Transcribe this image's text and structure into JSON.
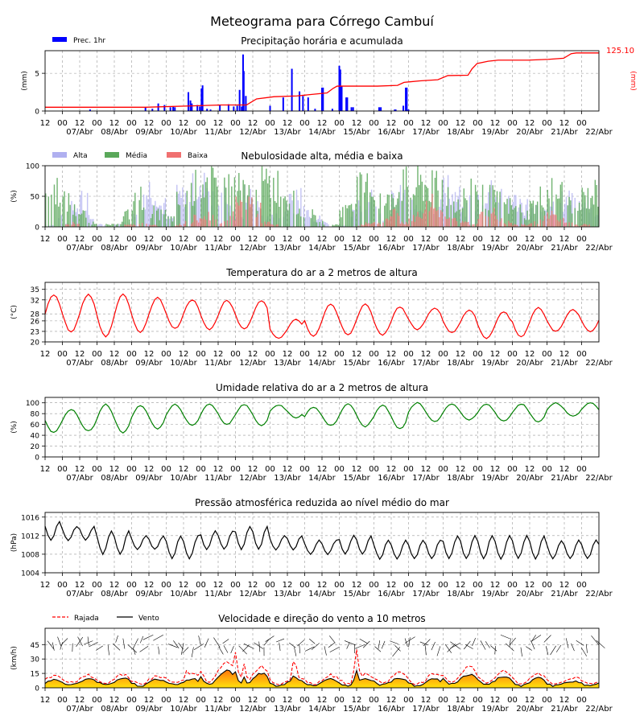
{
  "title": "Meteograma para Córrego Cambuí",
  "x_axis": {
    "hour_labels": [
      "12",
      "00",
      "12",
      "00",
      "12",
      "00",
      "12",
      "00",
      "12",
      "00",
      "12",
      "00",
      "12",
      "00",
      "12",
      "00",
      "12",
      "00",
      "12",
      "00",
      "12",
      "00",
      "12",
      "00",
      "12",
      "00",
      "12",
      "00",
      "12",
      "00",
      "12",
      "00"
    ],
    "day_labels": [
      "07/Abr",
      "08/Abr",
      "09/Abr",
      "10/Abr",
      "11/Abr",
      "12/Abr",
      "13/Abr",
      "14/Abr",
      "15/Abr",
      "16/Abr",
      "17/Abr",
      "18/Abr",
      "19/Abr",
      "20/Abr",
      "21/Abr",
      "22/Abr"
    ]
  },
  "chart_data": [
    {
      "type": "bar",
      "title": "Precipitação horária e acumulada",
      "ylabel": "(mm)",
      "ylabel_right": "(mm)",
      "ylim": [
        0,
        8
      ],
      "yticks": [
        "0",
        "5"
      ],
      "legend": [
        "Prec. 1hr"
      ],
      "legend_placement": "top-left",
      "accum_label": "125.10",
      "accum_max": 125.1,
      "colors": {
        "bars": "#0000ff",
        "accum": "#ff0000"
      },
      "x_start": "06/Abr 12h",
      "x_end": "22/Abr 12h",
      "bars": [
        [
          1.3,
          0.2
        ],
        [
          2.9,
          0.5
        ],
        [
          3.1,
          0.3
        ],
        [
          3.27,
          1.0
        ],
        [
          3.45,
          0.8
        ],
        [
          3.62,
          0.5
        ],
        [
          3.7,
          0.6
        ],
        [
          3.75,
          0.5
        ],
        [
          4.14,
          2.5
        ],
        [
          4.2,
          1.4
        ],
        [
          4.24,
          1.0
        ],
        [
          4.4,
          0.8
        ],
        [
          4.47,
          0.6
        ],
        [
          4.52,
          3.0
        ],
        [
          4.55,
          3.4
        ],
        [
          4.68,
          0.3
        ],
        [
          4.78,
          0.2
        ],
        [
          5.05,
          0.8
        ],
        [
          5.3,
          0.9
        ],
        [
          5.45,
          0.6
        ],
        [
          5.55,
          0.7
        ],
        [
          5.62,
          2.8
        ],
        [
          5.68,
          0.6
        ],
        [
          5.72,
          7.5
        ],
        [
          5.74,
          5.3
        ],
        [
          5.8,
          2.0
        ],
        [
          6.5,
          0.7
        ],
        [
          6.88,
          1.8
        ],
        [
          7.13,
          5.6
        ],
        [
          7.35,
          2.6
        ],
        [
          7.45,
          2.0
        ],
        [
          7.6,
          1.8
        ],
        [
          7.8,
          0.3
        ],
        [
          8.0,
          3.1
        ],
        [
          8.03,
          3.1
        ],
        [
          8.3,
          0.3
        ],
        [
          8.5,
          6.0
        ],
        [
          8.53,
          5.5
        ],
        [
          8.57,
          3.3
        ],
        [
          8.7,
          1.8
        ],
        [
          8.73,
          1.8
        ],
        [
          8.85,
          0.5
        ],
        [
          8.9,
          0.5
        ],
        [
          9.65,
          0.5
        ],
        [
          9.7,
          0.5
        ],
        [
          10.1,
          0.2
        ],
        [
          10.13,
          0.2
        ],
        [
          10.35,
          0.7
        ],
        [
          10.42,
          3.1
        ],
        [
          10.45,
          3.1
        ],
        [
          10.5,
          0.2
        ]
      ],
      "accum": [
        [
          0,
          0.5
        ],
        [
          2.0,
          0.5
        ],
        [
          3.5,
          0.8
        ],
        [
          4.0,
          0.8
        ],
        [
          4.2,
          1.6
        ],
        [
          4.55,
          1.9
        ],
        [
          5.0,
          2.0
        ],
        [
          5.6,
          2.4
        ],
        [
          5.72,
          3.0
        ],
        [
          5.8,
          3.3
        ],
        [
          6.4,
          3.3
        ],
        [
          6.6,
          3.3
        ],
        [
          7.0,
          3.4
        ],
        [
          7.13,
          3.8
        ],
        [
          7.45,
          4.0
        ],
        [
          7.8,
          4.15
        ],
        [
          8.0,
          4.7
        ],
        [
          8.4,
          4.75
        ],
        [
          8.48,
          5.6
        ],
        [
          8.58,
          6.3
        ],
        [
          8.8,
          6.6
        ],
        [
          9.0,
          6.75
        ],
        [
          9.6,
          6.75
        ],
        [
          10.0,
          6.85
        ],
        [
          10.3,
          7.0
        ],
        [
          10.45,
          7.6
        ],
        [
          10.55,
          7.7
        ],
        [
          11.0,
          7.7
        ]
      ]
    },
    {
      "type": "bar",
      "title": "Nebulosidade alta, média e baixa",
      "ylabel": "(%)",
      "ylim": [
        0,
        100
      ],
      "yticks": [
        "0",
        "50",
        "100"
      ],
      "legend": [
        "Alta",
        "Média",
        "Baixa"
      ],
      "legend_placement": "top-left",
      "colors": [
        "#b0b0f0",
        "#5aa85a",
        "#f07070"
      ],
      "series": [
        {
          "name": "Alta",
          "values": [
            5,
            20,
            8,
            60,
            70,
            20,
            5,
            0,
            5,
            10,
            40,
            80,
            90,
            50,
            20,
            70,
            85,
            90,
            95,
            90,
            80,
            40,
            30,
            70,
            50,
            20,
            30,
            40,
            60,
            80,
            40,
            20,
            10,
            0,
            5,
            30,
            60,
            80,
            40,
            20,
            60,
            70,
            50,
            30,
            40,
            80,
            90,
            70,
            40,
            60,
            80,
            90,
            80,
            70,
            60,
            50,
            40,
            30,
            50,
            60,
            70,
            80,
            60,
            40
          ]
        },
        {
          "name": "Média",
          "values": [
            80,
            90,
            60,
            40,
            30,
            10,
            0,
            5,
            10,
            30,
            60,
            70,
            40,
            30,
            20,
            60,
            80,
            95,
            100,
            100,
            95,
            100,
            90,
            80,
            70,
            100,
            100,
            90,
            60,
            40,
            30,
            20,
            10,
            5,
            40,
            60,
            90,
            95,
            70,
            60,
            80,
            100,
            90,
            100,
            95,
            100,
            80,
            60,
            70,
            90,
            80,
            70,
            60,
            50,
            40,
            30,
            50,
            70,
            90,
            80,
            60,
            50,
            70,
            80
          ]
        },
        {
          "name": "Baixa",
          "values": [
            0,
            0,
            5,
            10,
            0,
            0,
            0,
            0,
            0,
            5,
            5,
            10,
            5,
            0,
            0,
            5,
            10,
            20,
            30,
            20,
            10,
            30,
            50,
            60,
            40,
            10,
            5,
            0,
            0,
            0,
            0,
            0,
            0,
            0,
            0,
            0,
            5,
            10,
            10,
            20,
            30,
            10,
            20,
            30,
            60,
            40,
            30,
            20,
            10,
            5,
            30,
            40,
            20,
            10,
            5,
            5,
            10,
            20,
            30,
            20,
            10,
            5,
            5,
            0
          ]
        }
      ]
    },
    {
      "type": "line",
      "title": "Temperatura do ar a 2 metros de altura",
      "ylabel": "(°C)",
      "ylim": [
        20,
        37
      ],
      "yticks": [
        "20",
        "23",
        "26",
        "28",
        "32",
        "35"
      ],
      "color": "#ff0000",
      "daily": [
        [
          22.5,
          33.5
        ],
        [
          22.8,
          33.5
        ],
        [
          21.5,
          33.6
        ],
        [
          22.8,
          32.8
        ],
        [
          23.8,
          32.1
        ],
        [
          23.5,
          31.8
        ],
        [
          23.6,
          31.8
        ],
        [
          21.0,
          26.4
        ],
        [
          21.5,
          30.8
        ],
        [
          22.0,
          30.8
        ],
        [
          22.0,
          30.0
        ],
        [
          23.5,
          29.6
        ],
        [
          22.6,
          29.0
        ],
        [
          21.0,
          28.6
        ],
        [
          21.5,
          29.8
        ],
        [
          23.0,
          29.2
        ]
      ]
    },
    {
      "type": "line",
      "title": "Umidade relativa do ar a 2 metros de altura",
      "ylabel": "(%)",
      "ylim": [
        0,
        110
      ],
      "yticks": [
        "0",
        "20",
        "40",
        "60",
        "80",
        "100"
      ],
      "color": "#008000",
      "daily": [
        [
          45,
          90
        ],
        [
          48,
          88
        ],
        [
          45,
          97
        ],
        [
          52,
          95
        ],
        [
          58,
          97
        ],
        [
          60,
          98
        ],
        [
          58,
          97
        ],
        [
          72,
          96
        ],
        [
          58,
          92
        ],
        [
          56,
          98
        ],
        [
          52,
          96
        ],
        [
          65,
          100
        ],
        [
          68,
          97
        ],
        [
          66,
          98
        ],
        [
          65,
          98
        ],
        [
          75,
          100
        ]
      ]
    },
    {
      "type": "line",
      "title": "Pressão atmosférica reduzida ao nível médio do mar",
      "ylabel": "(hPa)",
      "ylim": [
        1004,
        1017
      ],
      "yticks": [
        "1004",
        "1008",
        "1012",
        "1016"
      ],
      "color": "#000000",
      "daily": [
        [
          1011,
          1015
        ],
        [
          1011,
          1014
        ],
        [
          1008,
          1013
        ],
        [
          1009,
          1012
        ],
        [
          1007,
          1012
        ],
        [
          1009,
          1013
        ],
        [
          1009,
          1014
        ],
        [
          1009,
          1012
        ],
        [
          1008,
          1011
        ],
        [
          1008,
          1012
        ],
        [
          1007,
          1011
        ],
        [
          1007,
          1011
        ],
        [
          1007,
          1012
        ],
        [
          1007,
          1012
        ],
        [
          1007,
          1012
        ],
        [
          1007,
          1011
        ]
      ]
    },
    {
      "type": "area",
      "title": "Velocidade e direção do vento a 10 metros",
      "ylabel": "(km/h)",
      "ylim": [
        0,
        62
      ],
      "yticks": [
        "0",
        "15",
        "30",
        "45"
      ],
      "legend": [
        "Rajada",
        "Vento"
      ],
      "legend_placement": "top-left",
      "colors": {
        "gust": "#ff0000",
        "wind": "#000000",
        "fill_low": "#ffe000",
        "fill_high": "#ff7000"
      },
      "wind_daily": [
        [
          2,
          8
        ],
        [
          3,
          9
        ],
        [
          3,
          10
        ],
        [
          2,
          9
        ],
        [
          3,
          9
        ],
        [
          4,
          18
        ],
        [
          3,
          15
        ],
        [
          2,
          8
        ],
        [
          2,
          9
        ],
        [
          2,
          9
        ],
        [
          3,
          10
        ],
        [
          2,
          9
        ],
        [
          4,
          14
        ],
        [
          3,
          12
        ],
        [
          2,
          10
        ],
        [
          2,
          7
        ]
      ],
      "gust_daily": [
        [
          4,
          12
        ],
        [
          5,
          13
        ],
        [
          5,
          14
        ],
        [
          4,
          12
        ],
        [
          5,
          14
        ],
        [
          6,
          28
        ],
        [
          5,
          22
        ],
        [
          4,
          12
        ],
        [
          4,
          13
        ],
        [
          4,
          14
        ],
        [
          5,
          16
        ],
        [
          4,
          14
        ],
        [
          6,
          22
        ],
        [
          5,
          18
        ],
        [
          4,
          15
        ],
        [
          4,
          11
        ]
      ],
      "gust_peaks": [
        [
          5.5,
          37
        ],
        [
          7.2,
          35
        ],
        [
          9.0,
          40
        ],
        [
          4.1,
          20
        ],
        [
          5.75,
          25
        ]
      ]
    }
  ]
}
